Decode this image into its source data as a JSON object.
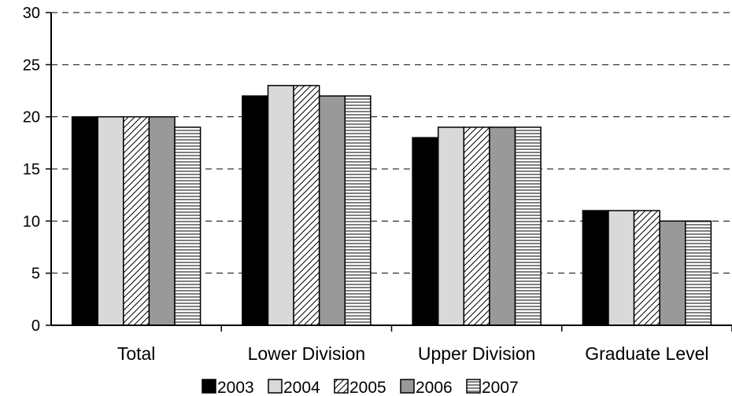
{
  "chart_data": {
    "type": "bar",
    "title": "",
    "xlabel": "",
    "ylabel": "",
    "categories": [
      "Total",
      "Lower Division",
      "Upper Division",
      "Graduate Level"
    ],
    "series": [
      {
        "name": "2003",
        "values": [
          20,
          22,
          18,
          11
        ],
        "pattern": "solid-black"
      },
      {
        "name": "2004",
        "values": [
          20,
          23,
          19,
          11
        ],
        "pattern": "light-gray"
      },
      {
        "name": "2005",
        "values": [
          20,
          23,
          19,
          11
        ],
        "pattern": "diagonal-hatch"
      },
      {
        "name": "2006",
        "values": [
          20,
          22,
          19,
          10
        ],
        "pattern": "gray"
      },
      {
        "name": "2007",
        "values": [
          19,
          22,
          19,
          10
        ],
        "pattern": "horizontal-lines"
      }
    ],
    "ylim": [
      0,
      30
    ],
    "yticks": [
      0,
      5,
      10,
      15,
      20,
      25,
      30
    ],
    "grid": "horizontal-dashed",
    "legend_position": "bottom"
  }
}
